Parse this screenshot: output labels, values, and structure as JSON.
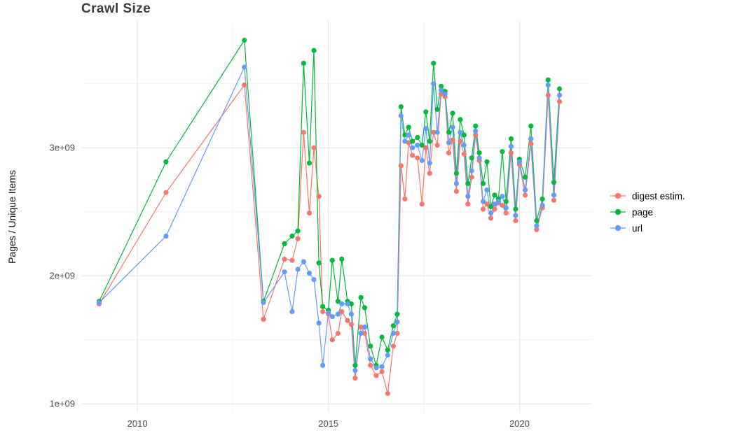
{
  "title": "Crawl Size",
  "chart_data": {
    "type": "line",
    "title": "Crawl Size",
    "xlabel": "",
    "ylabel": "Pages / Unique Items",
    "legend_position": "right",
    "grid": true,
    "values_scale_note": "series values are in units of 1e9 (billions), matching y-axis labels",
    "xlim": [
      2008.55,
      2021.9
    ],
    "ylim": [
      0.93,
      3.99
    ],
    "x_major": [
      {
        "v": 2010,
        "label": "2010"
      },
      {
        "v": 2015,
        "label": "2015"
      },
      {
        "v": 2020,
        "label": "2020"
      }
    ],
    "y_major": [
      {
        "v": 1,
        "label": "1e+09"
      },
      {
        "v": 2,
        "label": "2e+09"
      },
      {
        "v": 3,
        "label": "3e+09"
      }
    ],
    "x_minor": [
      2012.5,
      2017.5
    ],
    "y_minor": [
      1.5,
      2.5,
      3.5
    ],
    "x": [
      2009.0,
      2010.75,
      2012.8,
      2013.3,
      2013.85,
      2014.05,
      2014.2,
      2014.35,
      2014.5,
      2014.62,
      2014.75,
      2014.85,
      2015.0,
      2015.1,
      2015.25,
      2015.35,
      2015.5,
      2015.6,
      2015.7,
      2015.85,
      2015.95,
      2016.1,
      2016.25,
      2016.4,
      2016.55,
      2016.7,
      2016.8,
      2016.9,
      2017.0,
      2017.1,
      2017.2,
      2017.33,
      2017.45,
      2017.55,
      2017.65,
      2017.75,
      2017.85,
      2017.95,
      2018.05,
      2018.15,
      2018.25,
      2018.35,
      2018.45,
      2018.55,
      2018.65,
      2018.75,
      2018.85,
      2018.95,
      2019.05,
      2019.15,
      2019.25,
      2019.35,
      2019.45,
      2019.55,
      2019.65,
      2019.78,
      2019.9,
      2020.0,
      2020.15,
      2020.3,
      2020.45,
      2020.6,
      2020.75,
      2020.9,
      2021.05
    ],
    "series": [
      {
        "name": "digest estim.",
        "color": "#F8766D",
        "values": [
          1.78,
          2.65,
          3.49,
          1.66,
          2.13,
          2.12,
          2.29,
          3.12,
          2.49,
          3.0,
          2.62,
          1.72,
          1.7,
          1.5,
          1.55,
          1.72,
          1.65,
          1.62,
          1.2,
          1.6,
          1.55,
          1.3,
          1.22,
          1.25,
          1.08,
          1.45,
          1.55,
          2.86,
          2.6,
          3.04,
          2.94,
          2.92,
          2.56,
          3.0,
          2.8,
          3.12,
          3.02,
          3.42,
          3.4,
          2.96,
          3.06,
          2.66,
          3.05,
          2.95,
          2.56,
          2.77,
          3.1,
          2.9,
          2.52,
          2.56,
          2.45,
          2.52,
          2.57,
          2.55,
          2.49,
          2.96,
          2.43,
          2.87,
          2.63,
          3.03,
          2.36,
          2.53,
          3.41,
          2.59,
          3.36
        ]
      },
      {
        "name": "page",
        "color": "#00BA38",
        "values": [
          1.8,
          2.89,
          3.84,
          1.8,
          2.25,
          2.31,
          2.35,
          3.66,
          2.88,
          3.76,
          2.1,
          1.76,
          1.73,
          2.12,
          1.8,
          2.13,
          1.8,
          1.78,
          1.3,
          1.83,
          1.75,
          1.45,
          1.3,
          1.52,
          1.42,
          1.61,
          1.7,
          3.32,
          3.1,
          3.16,
          3.05,
          3.08,
          3.02,
          3.28,
          3.05,
          3.66,
          3.3,
          3.48,
          3.44,
          3.12,
          3.27,
          2.8,
          3.22,
          3.1,
          2.72,
          2.92,
          3.17,
          2.96,
          2.72,
          2.89,
          2.54,
          2.63,
          2.6,
          2.97,
          2.58,
          3.07,
          2.52,
          2.91,
          2.77,
          3.17,
          2.43,
          2.6,
          3.53,
          2.73,
          3.46
        ]
      },
      {
        "name": "url",
        "color": "#619CFF",
        "values": [
          1.79,
          2.31,
          3.63,
          1.79,
          2.03,
          1.72,
          2.05,
          2.11,
          2.02,
          1.97,
          1.63,
          1.3,
          1.71,
          1.68,
          1.7,
          1.78,
          1.78,
          1.7,
          1.26,
          1.55,
          1.6,
          1.35,
          1.28,
          1.29,
          1.38,
          1.55,
          1.64,
          3.25,
          3.05,
          3.1,
          3.0,
          3.02,
          2.9,
          3.15,
          2.88,
          3.5,
          3.12,
          3.45,
          3.42,
          3.04,
          3.16,
          2.72,
          3.12,
          3.02,
          2.62,
          2.82,
          3.13,
          2.92,
          2.58,
          2.67,
          2.49,
          2.56,
          2.58,
          2.62,
          2.53,
          3.01,
          2.47,
          2.89,
          2.67,
          3.07,
          2.39,
          2.55,
          3.49,
          2.63,
          3.41
        ]
      }
    ]
  }
}
